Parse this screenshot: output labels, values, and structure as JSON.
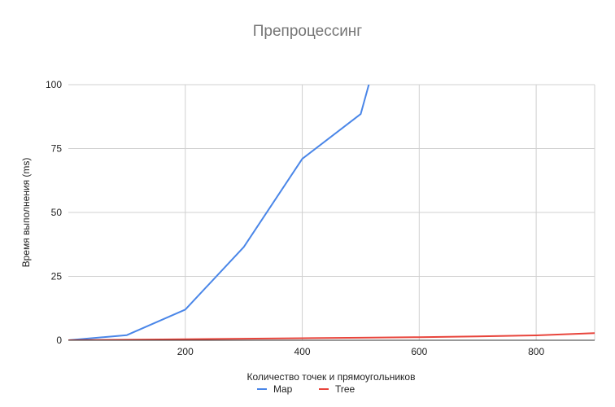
{
  "chart_data": {
    "type": "line",
    "title": "Препроцессинг",
    "xlabel": "Количество точек и прямоугольников",
    "ylabel": "Время выполнения (ms)",
    "xlim": [
      0,
      900
    ],
    "ylim": [
      0,
      100
    ],
    "xticks": [
      200,
      400,
      600,
      800
    ],
    "yticks": [
      0,
      25,
      50,
      75,
      100
    ],
    "grid": true,
    "legend_position": "bottom",
    "series": [
      {
        "name": "Map",
        "color": "#4a86e8",
        "x": [
          0,
          100,
          200,
          300,
          400,
          500,
          550
        ],
        "y": [
          0,
          2,
          12,
          36.5,
          71,
          88.5,
          130
        ]
      },
      {
        "name": "Tree",
        "color": "#e8453c",
        "x": [
          0,
          100,
          200,
          300,
          400,
          500,
          600,
          700,
          800,
          900
        ],
        "y": [
          0,
          0.2,
          0.4,
          0.6,
          0.8,
          1.0,
          1.2,
          1.5,
          1.9,
          2.8
        ]
      }
    ]
  }
}
